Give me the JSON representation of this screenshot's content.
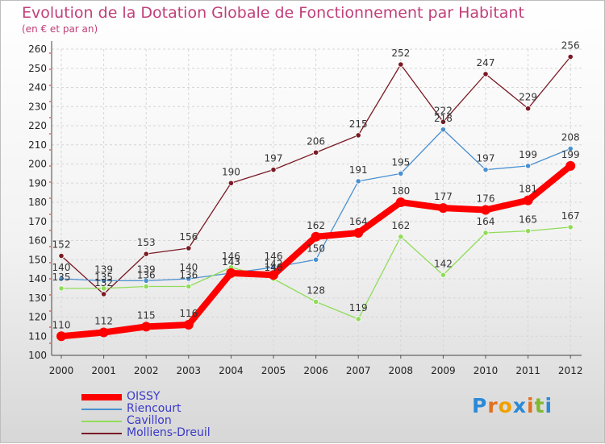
{
  "chart_data": {
    "type": "line",
    "title": "Evolution de la Dotation Globale de Fonctionnement par Habitant",
    "subtitle": "(en € et par an)",
    "xlabel": "",
    "ylabel": "",
    "ylim": [
      100,
      260
    ],
    "yticks": [
      100,
      110,
      120,
      130,
      140,
      150,
      160,
      170,
      180,
      190,
      200,
      210,
      220,
      230,
      240,
      250,
      260
    ],
    "categories": [
      "2000",
      "2001",
      "2002",
      "2003",
      "2004",
      "2005",
      "2006",
      "2007",
      "2008",
      "2009",
      "2010",
      "2011",
      "2012"
    ],
    "legend_position": "bottom-left",
    "series": [
      {
        "name": "Molliens-Dreuil",
        "color": "#7a1a24",
        "values": [
          152,
          132,
          153,
          156,
          190,
          197,
          206,
          215,
          252,
          222,
          247,
          229,
          256
        ]
      },
      {
        "name": "Riencourt",
        "color": "#4a90d0",
        "values": [
          140,
          139,
          139,
          140,
          143,
          146,
          150,
          191,
          195,
          218,
          197,
          199,
          208
        ]
      },
      {
        "name": "Cavillon",
        "color": "#90dc58",
        "values": [
          135,
          135,
          136,
          136,
          146,
          140,
          128,
          119,
          162,
          142,
          164,
          165,
          167
        ]
      },
      {
        "name": "OISSY",
        "color": "#ff0000",
        "values": [
          110,
          112,
          115,
          116,
          143,
          142,
          162,
          164,
          180,
          177,
          176,
          181,
          199
        ]
      }
    ],
    "data_labels": {
      "Molliens-Dreuil": [
        "152",
        "132",
        "153",
        "156",
        "190",
        "197",
        "206",
        "215",
        "252",
        "222",
        "247",
        "229",
        "256"
      ],
      "Riencourt": [
        "140",
        "139",
        "139",
        "140",
        "143",
        "146",
        "150",
        "191",
        "195",
        "218",
        "197",
        "199",
        "208"
      ],
      "Cavillon": [
        "135",
        "135",
        "136",
        "136",
        "146",
        "140",
        "128",
        "119",
        "162",
        "142",
        "164",
        "165",
        "167"
      ],
      "OISSY": [
        "110",
        "112",
        "115",
        "116",
        "143",
        "142",
        "162",
        "164",
        "180",
        "177",
        "176",
        "181",
        "199"
      ]
    }
  },
  "legend": {
    "items": [
      {
        "label": "OISSY",
        "color": "#ff0000"
      },
      {
        "label": "Riencourt",
        "color": "#4a90d0"
      },
      {
        "label": "Cavillon",
        "color": "#90dc58"
      },
      {
        "label": "Molliens-Dreuil",
        "color": "#7a1a24"
      }
    ]
  },
  "logo": {
    "text": "Proxiti",
    "letter_colors": [
      "#2a8ad8",
      "#e07020",
      "#f0a000",
      "#2a8ad8",
      "#e07020",
      "#80b830",
      "#2a8ad8"
    ]
  }
}
